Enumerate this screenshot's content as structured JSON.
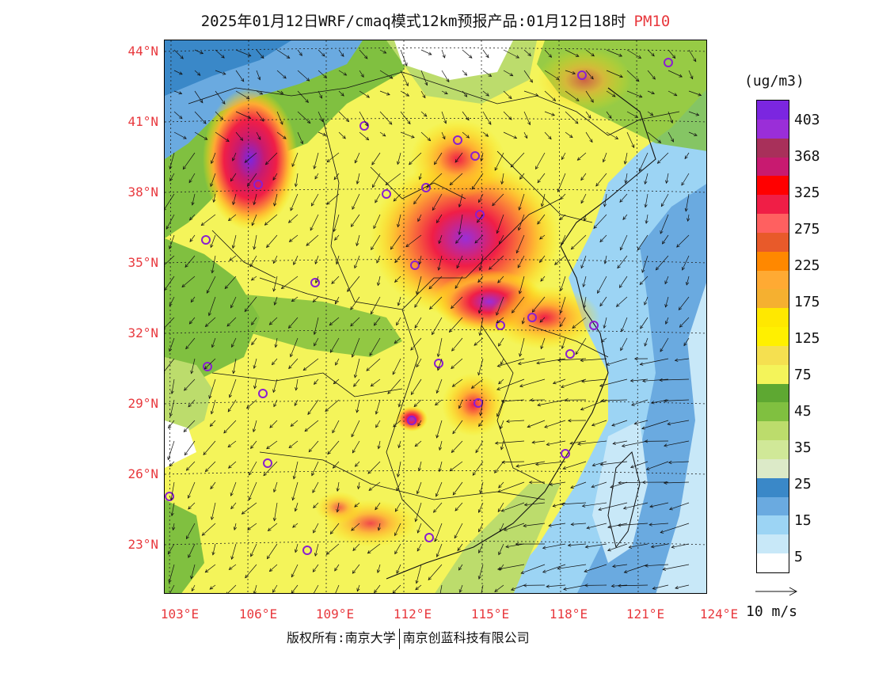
{
  "title": {
    "main": "2025年01月12日WRF/cmaq模式12km预报产品:01月12日18时",
    "pollutant": "PM10"
  },
  "map": {
    "lat_labels": [
      "44°N",
      "41°N",
      "38°N",
      "35°N",
      "32°N",
      "29°N",
      "26°N",
      "23°N"
    ],
    "lon_labels": [
      "103°E",
      "106°E",
      "109°E",
      "112°E",
      "115°E",
      "118°E",
      "121°E",
      "124°E"
    ],
    "lon_range": [
      103,
      124
    ],
    "lat_range": [
      21.1,
      44.4
    ]
  },
  "legend": {
    "unit": "(ug/m3)",
    "colors": [
      "#7b26e0",
      "#9a2ed8",
      "#a8305a",
      "#c81a70",
      "#ff0000",
      "#f01e46",
      "#ff6060",
      "#e85a2a",
      "#ff8800",
      "#ffaa33",
      "#f5b030",
      "#ffe800",
      "#fff000",
      "#f5e050",
      "#f4f45a",
      "#5ea832",
      "#80c040",
      "#bcdc6c",
      "#d0e898",
      "#dceac8",
      "#3a88c8",
      "#6aaae0",
      "#9cd4f4",
      "#c8e8f8",
      "#ffffff"
    ],
    "labels": [
      "403",
      "368",
      "325",
      "275",
      "225",
      "175",
      "125",
      "75",
      "45",
      "35",
      "25",
      "15",
      "5"
    ]
  },
  "wind_reference": {
    "label": "10 m/s"
  },
  "copyright": {
    "left": "版权所有:南京大学",
    "right": "南京创蓝科技有限公司"
  }
}
